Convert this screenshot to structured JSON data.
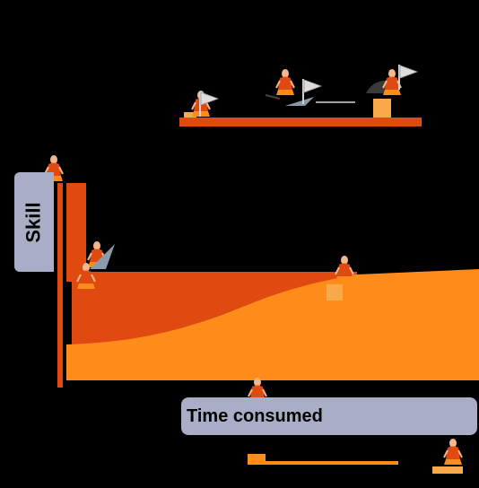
{
  "labels": {
    "y_axis": "Skill",
    "x_axis": "Time consumed"
  },
  "colors": {
    "background": "#000000",
    "dark_orange": "#e04a10",
    "light_orange": "#ff8c1a",
    "pale_orange": "#f9a84a",
    "label_fill": "#a9aec6",
    "flag": "#dcdcdc",
    "hiker_skin": "#f7b78a"
  },
  "icons": {
    "hiker": "hiker-icon",
    "flag": "flag-icon"
  }
}
